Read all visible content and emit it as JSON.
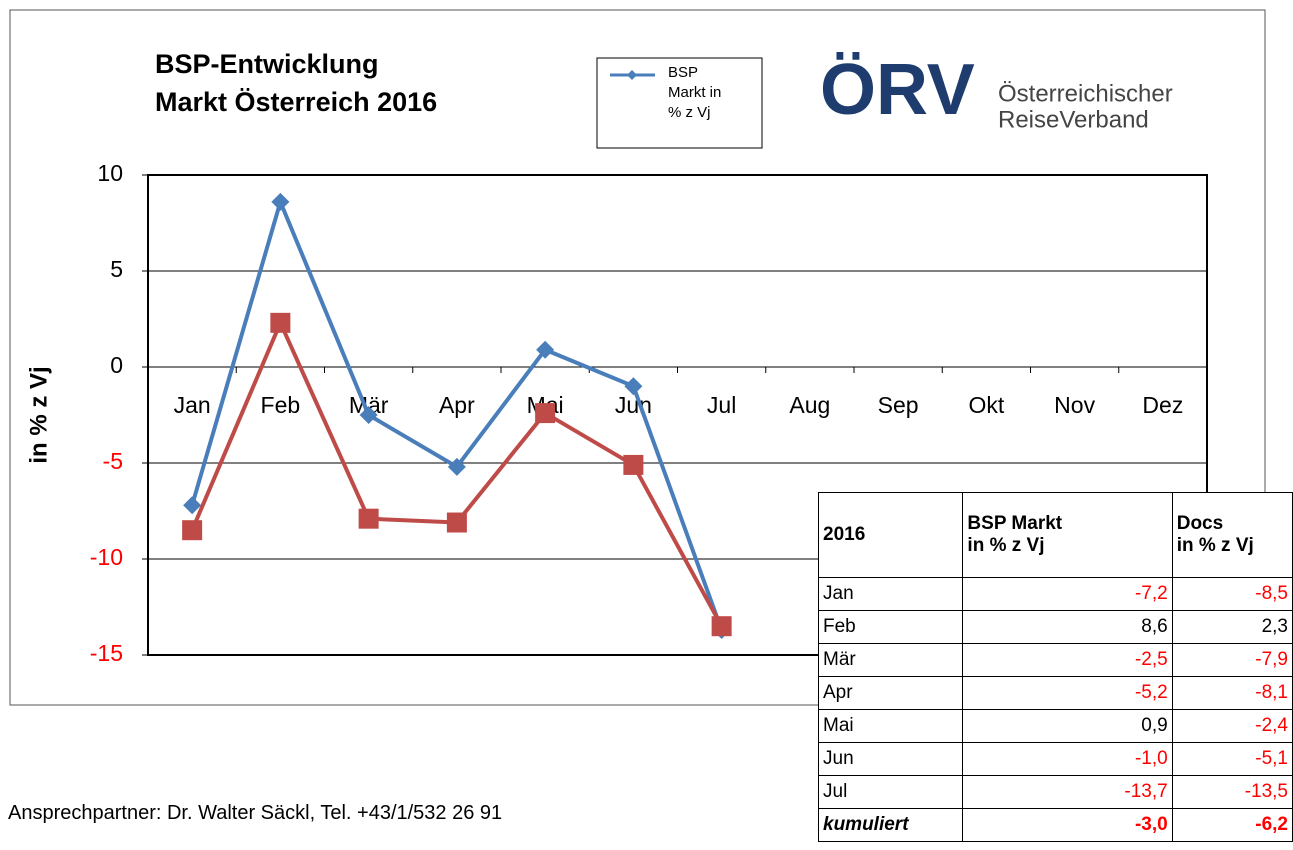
{
  "chart_data": {
    "type": "line",
    "title_lines": [
      "BSP-Entwicklung",
      "Markt Österreich 2016"
    ],
    "y_label": "in % z Vj",
    "categories": [
      "Jan",
      "Feb",
      "Mär",
      "Apr",
      "Mai",
      "Jun",
      "Jul",
      "Aug",
      "Sep",
      "Okt",
      "Nov",
      "Dez"
    ],
    "series": [
      {
        "name": "BSP Markt in % z Vj",
        "color": "#4a7ebb",
        "marker": "diamond",
        "values": [
          -7.2,
          8.6,
          -2.5,
          -5.2,
          0.9,
          -1.0,
          -13.7,
          null,
          null,
          null,
          null,
          null
        ]
      },
      {
        "color": "#be4b48",
        "marker": "square",
        "values": [
          -8.5,
          2.3,
          -7.9,
          -8.1,
          -2.4,
          -5.1,
          -13.5,
          null,
          null,
          null,
          null,
          null
        ]
      }
    ],
    "ylim": [
      -15,
      10
    ],
    "yticks": [
      -15,
      -10,
      -5,
      0,
      5,
      10
    ],
    "grid": true,
    "negative_tick_color": "#ff0000",
    "legend": "top"
  },
  "logo": {
    "mark": "ÖRV",
    "line1": "Österreichischer",
    "line2": "ReiseVerband"
  },
  "footer": "Ansprechpartner: Dr. Walter Säckl, Tel. +43/1/532 26 91",
  "table": {
    "header": [
      "2016",
      [
        "BSP Markt",
        "in % z Vj"
      ],
      [
        "Docs",
        "in % z Vj"
      ]
    ],
    "rows": [
      [
        "Jan",
        "-7,2",
        "-8,5"
      ],
      [
        "Feb",
        "8,6",
        "2,3"
      ],
      [
        "Mär",
        "-2,5",
        "-7,9"
      ],
      [
        "Apr",
        "-5,2",
        "-8,1"
      ],
      [
        "Mai",
        "0,9",
        "-2,4"
      ],
      [
        "Jun",
        "-1,0",
        "-5,1"
      ],
      [
        "Jul",
        "-13,7",
        "-13,5"
      ]
    ],
    "total": [
      "kumuliert",
      "-3,0",
      "-6,2"
    ]
  }
}
